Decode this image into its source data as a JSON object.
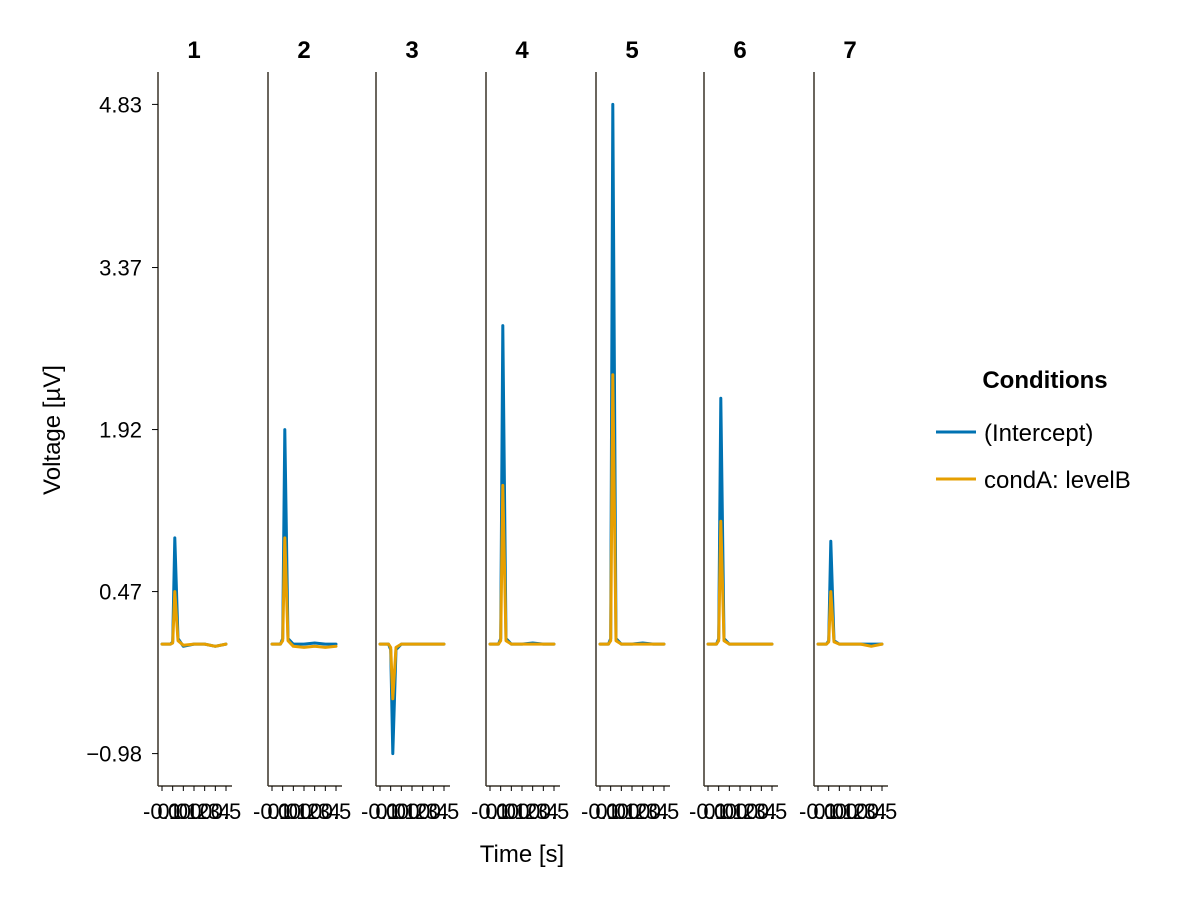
{
  "chart_data": {
    "type": "line",
    "xlabel": "Time [s]",
    "ylabel": "Voltage [µV]",
    "y_ticks": [
      "−0.98",
      "0.47",
      "1.92",
      "3.37",
      "4.83"
    ],
    "y_tick_values": [
      -0.98,
      0.47,
      1.92,
      3.37,
      4.83
    ],
    "ylim": [
      -1.27,
      5.12
    ],
    "x_ticks": [
      "-0.1",
      "0.0",
      "0.1",
      "0.2",
      "0.3",
      "0.4",
      "0.5"
    ],
    "x_tick_values": [
      -0.1,
      0.0,
      0.1,
      0.2,
      0.3,
      0.4,
      0.5
    ],
    "xlim": [
      -0.1,
      0.5
    ],
    "grid": false,
    "legend": {
      "title": "Conditions",
      "position": "right",
      "entries": [
        {
          "name": "(Intercept)",
          "color": "#0072b2"
        },
        {
          "name": "condA: levelB",
          "color": "#e69f00"
        }
      ]
    },
    "panels": [
      {
        "title": "1",
        "series": [
          {
            "name": "(Intercept)",
            "color": "#0072b2",
            "x": [
              -0.1,
              -0.05,
              -0.02,
              0.0,
              0.02,
              0.05,
              0.1,
              0.2,
              0.3,
              0.4,
              0.5
            ],
            "y": [
              0.0,
              0.0,
              0.0,
              0.02,
              0.95,
              0.05,
              -0.02,
              0.0,
              0.0,
              -0.02,
              0.0
            ]
          },
          {
            "name": "condA: levelB",
            "color": "#e69f00",
            "x": [
              -0.1,
              -0.05,
              -0.02,
              0.0,
              0.02,
              0.05,
              0.1,
              0.2,
              0.3,
              0.4,
              0.5
            ],
            "y": [
              0.0,
              0.0,
              0.0,
              0.01,
              0.47,
              0.03,
              -0.01,
              0.0,
              0.0,
              -0.02,
              0.0
            ]
          }
        ]
      },
      {
        "title": "2",
        "series": [
          {
            "name": "(Intercept)",
            "color": "#0072b2",
            "x": [
              -0.1,
              -0.05,
              -0.02,
              0.0,
              0.02,
              0.05,
              0.1,
              0.2,
              0.3,
              0.4,
              0.5
            ],
            "y": [
              0.0,
              0.0,
              0.0,
              0.05,
              1.92,
              0.05,
              0.0,
              0.0,
              0.01,
              0.0,
              0.0
            ]
          },
          {
            "name": "condA: levelB",
            "color": "#e69f00",
            "x": [
              -0.1,
              -0.05,
              -0.02,
              0.0,
              0.02,
              0.05,
              0.1,
              0.2,
              0.3,
              0.4,
              0.5
            ],
            "y": [
              0.0,
              0.0,
              0.0,
              0.03,
              0.95,
              0.03,
              -0.02,
              -0.03,
              -0.02,
              -0.03,
              -0.02
            ]
          }
        ]
      },
      {
        "title": "3",
        "series": [
          {
            "name": "(Intercept)",
            "color": "#0072b2",
            "x": [
              -0.1,
              -0.05,
              -0.02,
              0.0,
              0.02,
              0.05,
              0.1,
              0.2,
              0.3,
              0.4,
              0.5
            ],
            "y": [
              0.0,
              0.0,
              0.0,
              -0.05,
              -0.98,
              -0.05,
              0.0,
              0.0,
              0.0,
              0.0,
              0.0
            ]
          },
          {
            "name": "condA: levelB",
            "color": "#e69f00",
            "x": [
              -0.1,
              -0.05,
              -0.02,
              0.0,
              0.02,
              0.05,
              0.1,
              0.2,
              0.3,
              0.4,
              0.5
            ],
            "y": [
              0.0,
              0.0,
              0.0,
              -0.03,
              -0.49,
              -0.03,
              0.0,
              0.0,
              0.0,
              0.0,
              0.0
            ]
          }
        ]
      },
      {
        "title": "4",
        "series": [
          {
            "name": "(Intercept)",
            "color": "#0072b2",
            "x": [
              -0.1,
              -0.05,
              -0.02,
              0.0,
              0.02,
              0.05,
              0.1,
              0.2,
              0.3,
              0.4,
              0.5
            ],
            "y": [
              0.0,
              0.0,
              0.0,
              0.05,
              2.85,
              0.05,
              0.0,
              0.0,
              0.01,
              0.0,
              0.0
            ]
          },
          {
            "name": "condA: levelB",
            "color": "#e69f00",
            "x": [
              -0.1,
              -0.05,
              -0.02,
              0.0,
              0.02,
              0.05,
              0.1,
              0.2,
              0.3,
              0.4,
              0.5
            ],
            "y": [
              0.0,
              0.0,
              0.0,
              0.03,
              1.42,
              0.03,
              0.0,
              0.0,
              0.0,
              0.0,
              0.0
            ]
          }
        ]
      },
      {
        "title": "5",
        "series": [
          {
            "name": "(Intercept)",
            "color": "#0072b2",
            "x": [
              -0.1,
              -0.05,
              -0.02,
              0.0,
              0.02,
              0.05,
              0.1,
              0.2,
              0.3,
              0.4,
              0.5
            ],
            "y": [
              0.0,
              0.0,
              0.0,
              0.05,
              4.83,
              0.05,
              0.0,
              0.0,
              0.01,
              0.0,
              0.0
            ]
          },
          {
            "name": "condA: levelB",
            "color": "#e69f00",
            "x": [
              -0.1,
              -0.05,
              -0.02,
              0.0,
              0.02,
              0.05,
              0.1,
              0.2,
              0.3,
              0.4,
              0.5
            ],
            "y": [
              0.0,
              0.0,
              0.0,
              0.03,
              2.41,
              0.03,
              0.0,
              0.0,
              0.0,
              0.0,
              0.0
            ]
          }
        ]
      },
      {
        "title": "6",
        "series": [
          {
            "name": "(Intercept)",
            "color": "#0072b2",
            "x": [
              -0.1,
              -0.05,
              -0.02,
              0.0,
              0.02,
              0.05,
              0.1,
              0.2,
              0.3,
              0.4,
              0.5
            ],
            "y": [
              0.0,
              0.0,
              0.0,
              0.05,
              2.2,
              0.05,
              0.0,
              0.0,
              0.0,
              0.0,
              0.0
            ]
          },
          {
            "name": "condA: levelB",
            "color": "#e69f00",
            "x": [
              -0.1,
              -0.05,
              -0.02,
              0.0,
              0.02,
              0.05,
              0.1,
              0.2,
              0.3,
              0.4,
              0.5
            ],
            "y": [
              0.0,
              0.0,
              0.0,
              0.03,
              1.1,
              0.03,
              0.0,
              0.0,
              0.0,
              0.0,
              0.0
            ]
          }
        ]
      },
      {
        "title": "7",
        "series": [
          {
            "name": "(Intercept)",
            "color": "#0072b2",
            "x": [
              -0.1,
              -0.05,
              -0.02,
              0.0,
              0.02,
              0.05,
              0.1,
              0.2,
              0.3,
              0.4,
              0.5
            ],
            "y": [
              0.0,
              0.0,
              0.0,
              0.03,
              0.92,
              0.03,
              0.0,
              0.0,
              0.0,
              0.0,
              0.0
            ]
          },
          {
            "name": "condA: levelB",
            "color": "#e69f00",
            "x": [
              -0.1,
              -0.05,
              -0.02,
              0.0,
              0.02,
              0.05,
              0.1,
              0.2,
              0.3,
              0.4,
              0.5
            ],
            "y": [
              0.0,
              0.0,
              0.0,
              0.02,
              0.47,
              0.02,
              0.0,
              0.0,
              0.0,
              -0.02,
              0.0
            ]
          }
        ]
      }
    ]
  }
}
